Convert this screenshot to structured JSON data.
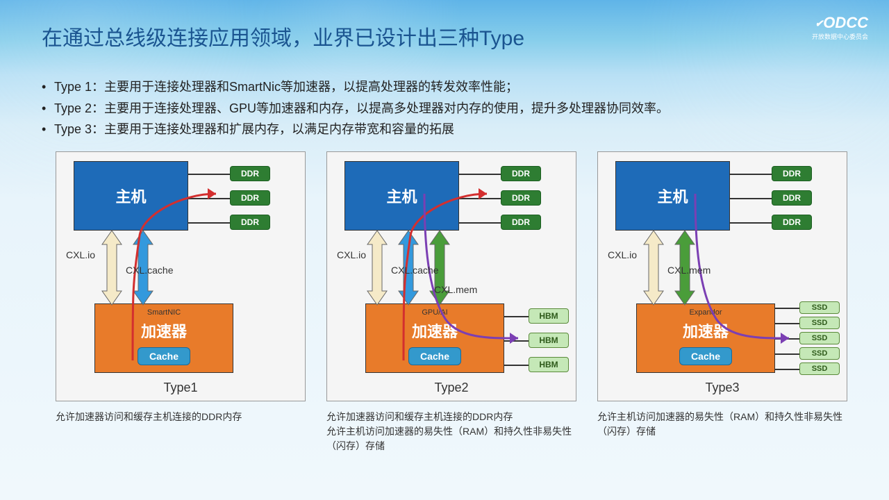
{
  "logo": {
    "main": "ODCC",
    "sub": "开放数据中心委员会"
  },
  "title": "在通过总线级连接应用领域，业界已设计出三种Type",
  "bullets": [
    "Type 1：主要用于连接处理器和SmartNic等加速器，以提高处理器的转发效率性能；",
    "Type 2：主要用于连接处理器、GPU等加速器和内存，以提高多处理器对内存的使用，提升多处理器协同效率。",
    "Type 3：主要用于连接处理器和扩展内存，以满足内存带宽和容量的拓展"
  ],
  "colors": {
    "host": "#1e6bb8",
    "acc": "#e87b2a",
    "ddr": "#2e7d32",
    "hbm": "#c5e8b7",
    "cache": "#3399cc",
    "arrow_cream": "#f5eac8",
    "arrow_blue": "#3399dd",
    "arrow_green": "#4a9d3a",
    "curve_red": "#d32f2f",
    "curve_purple": "#7b3fb3"
  },
  "common": {
    "host": "主机",
    "acc": "加速器",
    "cache": "Cache",
    "ddr": "DDR",
    "hbm": "HBM",
    "ssd": "SSD",
    "cxl_io": "CXL.io",
    "cxl_cache": "CXL.cache",
    "cxl_mem": "CXL.mem"
  },
  "panels": [
    {
      "type": "Type1",
      "accLabel": "SmartNIC",
      "top_mem": [
        {
          "kind": "ddr",
          "label": "DDR"
        },
        {
          "kind": "ddr",
          "label": "DDR"
        },
        {
          "kind": "ddr",
          "label": "DDR"
        }
      ],
      "bot_mem": [],
      "protocols": [
        "CXL.io",
        "CXL.cache"
      ],
      "arrows": [
        "cream",
        "blue"
      ],
      "curves": [
        {
          "color": "#d32f2f",
          "shape": "low"
        }
      ],
      "caption": "允许加速器访问和缓存主机连接的DDR内存"
    },
    {
      "type": "Type2",
      "accLabel": "GPU/AI",
      "top_mem": [
        {
          "kind": "ddr",
          "label": "DDR"
        },
        {
          "kind": "ddr",
          "label": "DDR"
        },
        {
          "kind": "ddr",
          "label": "DDR"
        }
      ],
      "bot_mem": [
        {
          "kind": "hbm",
          "label": "HBM"
        },
        {
          "kind": "hbm",
          "label": "HBM"
        },
        {
          "kind": "hbm",
          "label": "HBM"
        }
      ],
      "protocols": [
        "CXL.io",
        "CXL.cache",
        "CXL.mem"
      ],
      "arrows": [
        "cream",
        "blue",
        "green"
      ],
      "curves": [
        {
          "color": "#d32f2f",
          "shape": "low"
        },
        {
          "color": "#7b3fb3",
          "shape": "high"
        }
      ],
      "caption": "允许加速器访问和缓存主机连接的DDR内存\n允许主机访问加速器的易失性（RAM）和持久性非易失性（闪存）存储"
    },
    {
      "type": "Type3",
      "accLabel": "Expandor",
      "top_mem": [
        {
          "kind": "ddr",
          "label": "DDR"
        },
        {
          "kind": "ddr",
          "label": "DDR"
        },
        {
          "kind": "ddr",
          "label": "DDR"
        }
      ],
      "bot_mem": [
        {
          "kind": "ssd",
          "label": "SSD"
        },
        {
          "kind": "ssd",
          "label": "SSD"
        },
        {
          "kind": "ssd",
          "label": "SSD"
        },
        {
          "kind": "ssd",
          "label": "SSD"
        },
        {
          "kind": "ssd",
          "label": "SSD"
        }
      ],
      "protocols": [
        "CXL.io",
        "CXL.mem"
      ],
      "arrows": [
        "cream",
        "green"
      ],
      "curves": [
        {
          "color": "#7b3fb3",
          "shape": "high"
        }
      ],
      "caption": "允许主机访问加速器的易失性（RAM）和持久性非易失性（闪存）存储"
    }
  ]
}
